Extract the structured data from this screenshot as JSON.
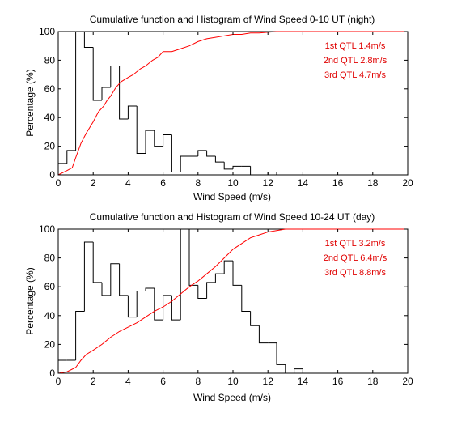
{
  "chart_data": [
    {
      "type": "line",
      "title": "Cumulative function and Histogram of Wind Speed 0-10 UT (night)",
      "xlabel": "Wind Speed (m/s)",
      "ylabel": "Percentage (%)",
      "xlim": [
        0,
        20
      ],
      "ylim": [
        0,
        100
      ],
      "xticks": [
        0,
        2,
        4,
        6,
        8,
        10,
        12,
        14,
        16,
        18,
        20
      ],
      "yticks": [
        0,
        20,
        40,
        60,
        80,
        100
      ],
      "grid": false,
      "annotations": [
        "1st QTL 1.4m/s",
        "2nd QTL 2.8m/s",
        "3rd QTL 4.7m/s"
      ],
      "series": [
        {
          "kind": "histogram",
          "color": "#000000",
          "bin_edges": [
            0,
            0.5,
            1.0,
            1.5,
            2.0,
            2.5,
            3.0,
            3.5,
            4.0,
            4.5,
            5.0,
            5.5,
            6.0,
            6.5,
            7.0,
            7.5,
            8.0,
            8.5,
            9.0,
            9.5,
            10.0,
            10.5,
            11.0,
            11.5,
            12.0,
            12.5,
            13.0
          ],
          "values": [
            8,
            17,
            100,
            89,
            52,
            61,
            76,
            39,
            48,
            15,
            31,
            20,
            28,
            2,
            13,
            13,
            17,
            13,
            9,
            4,
            6,
            6,
            0,
            0,
            2,
            0
          ]
        },
        {
          "kind": "cdf",
          "color": "#ff0000",
          "x": [
            0,
            0.5,
            0.8,
            1.0,
            1.3,
            1.6,
            2.0,
            2.3,
            2.6,
            2.8,
            3.0,
            3.3,
            3.6,
            4.0,
            4.3,
            4.7,
            5.0,
            5.4,
            5.7,
            6.0,
            6.5,
            7.0,
            7.5,
            8.0,
            8.5,
            9.0,
            9.5,
            10.0,
            10.5,
            11.0,
            11.5,
            12.0,
            12.5,
            13.0,
            20.0
          ],
          "y": [
            0,
            3,
            5,
            12,
            22,
            29,
            37,
            44,
            48,
            52,
            55,
            61,
            65,
            68,
            70,
            74,
            76,
            80,
            82,
            86,
            86,
            88,
            90,
            93,
            95,
            96,
            97,
            98,
            98,
            99,
            99,
            99.5,
            100,
            100,
            100
          ]
        }
      ]
    },
    {
      "type": "line",
      "title": "Cumulative function and Histogram of Wind Speed 10-24 UT (day)",
      "xlabel": "Wind Speed (m/s)",
      "ylabel": "Percentage (%)",
      "xlim": [
        0,
        20
      ],
      "ylim": [
        0,
        100
      ],
      "xticks": [
        0,
        2,
        4,
        6,
        8,
        10,
        12,
        14,
        16,
        18,
        20
      ],
      "yticks": [
        0,
        20,
        40,
        60,
        80,
        100
      ],
      "grid": false,
      "annotations": [
        "1st QTL 3.2m/s",
        "2nd QTL 6.4m/s",
        "3rd QTL 8.8m/s"
      ],
      "series": [
        {
          "kind": "histogram",
          "color": "#000000",
          "bin_edges": [
            0,
            0.5,
            1.0,
            1.5,
            2.0,
            2.5,
            3.0,
            3.5,
            4.0,
            4.5,
            5.0,
            5.5,
            6.0,
            6.5,
            7.0,
            7.5,
            8.0,
            8.5,
            9.0,
            9.5,
            10.0,
            10.5,
            11.0,
            11.5,
            12.0,
            12.5,
            13.0,
            13.5,
            14.0
          ],
          "values": [
            9,
            9,
            43,
            91,
            63,
            54,
            76,
            54,
            39,
            57,
            59,
            37,
            54,
            37,
            100,
            61,
            52,
            63,
            69,
            78,
            61,
            43,
            33,
            21,
            21,
            6,
            0,
            3
          ]
        },
        {
          "kind": "cdf",
          "color": "#ff0000",
          "x": [
            0,
            0.5,
            1.0,
            1.3,
            1.6,
            2.0,
            2.5,
            3.0,
            3.5,
            4.0,
            4.5,
            5.0,
            5.5,
            6.0,
            6.5,
            7.0,
            7.5,
            8.0,
            8.5,
            9.0,
            9.5,
            10.0,
            10.5,
            11.0,
            11.5,
            12.0,
            12.5,
            13.0,
            14.0,
            20.0
          ],
          "y": [
            0,
            1,
            4,
            9,
            13,
            16,
            20,
            25,
            29,
            32,
            35,
            39,
            43,
            46,
            50,
            55,
            60,
            64,
            69,
            74,
            80,
            86,
            90,
            94,
            96,
            98,
            99,
            100,
            100,
            100
          ]
        }
      ]
    }
  ]
}
